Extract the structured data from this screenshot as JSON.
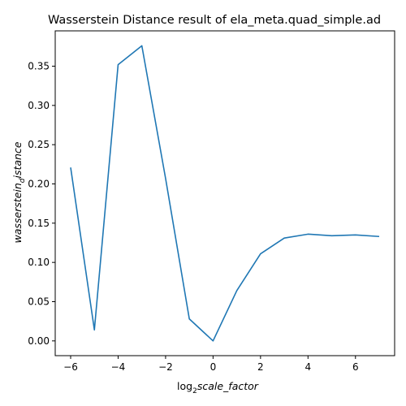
{
  "chart_data": {
    "type": "line",
    "title": "Wasserstein Distance result of ela_meta.quad_simple.ad",
    "xlabel": {
      "prefix": "log",
      "subscript": "2",
      "italic": "scale_factor"
    },
    "ylabel": {
      "italic_main": "wasserstein",
      "subscript": "d",
      "italic_tail": "istance"
    },
    "x_ticks": [
      -6,
      -4,
      -2,
      0,
      2,
      4,
      6
    ],
    "x_tick_labels": [
      "−6",
      "−4",
      "−2",
      "0",
      "2",
      "4",
      "6"
    ],
    "y_ticks": [
      0.0,
      0.05,
      0.1,
      0.15,
      0.2,
      0.25,
      0.3,
      0.35
    ],
    "y_tick_labels": [
      "0.00",
      "0.05",
      "0.10",
      "0.15",
      "0.20",
      "0.25",
      "0.30",
      "0.35"
    ],
    "xlim": [
      -6.65,
      7.65
    ],
    "ylim": [
      -0.0188,
      0.395
    ],
    "grid": false,
    "series": [
      {
        "color": "#1f77b4",
        "x": [
          -6,
          -5,
          -4,
          -3,
          -2,
          -1,
          0,
          1,
          2,
          3,
          4,
          5,
          6,
          7
        ],
        "y": [
          0.221,
          0.014,
          0.352,
          0.376,
          0.207,
          0.028,
          0.0,
          0.064,
          0.111,
          0.131,
          0.136,
          0.134,
          0.135,
          0.133
        ]
      }
    ]
  }
}
